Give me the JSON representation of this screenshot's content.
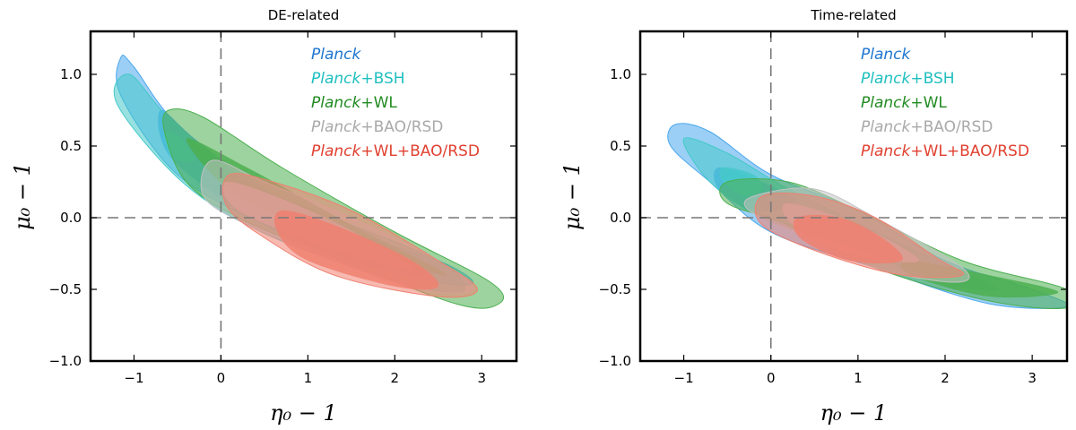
{
  "chart_data": [
    {
      "type": "contour",
      "title": "DE-related",
      "xlabel": "η₀ − 1",
      "ylabel": "μ₀ − 1",
      "xlim": [
        -1.5,
        3.4
      ],
      "ylim": [
        -1.0,
        1.3
      ],
      "xticks": [
        -1,
        0,
        1,
        2,
        3
      ],
      "yticks": [
        -1.0,
        -0.5,
        0.0,
        0.5,
        1.0
      ],
      "xtick_labels": [
        "−1",
        "0",
        "1",
        "2",
        "3"
      ],
      "ytick_labels": [
        "−1.0",
        "−0.5",
        "0.0",
        "0.5",
        "1.0"
      ],
      "reference_lines": {
        "x": 0,
        "y": 0
      },
      "legend_position": "top-right",
      "legend": [
        {
          "italic": "Planck",
          "suffix": "",
          "color": "#1f77d0"
        },
        {
          "italic": "Planck",
          "suffix": "+BSH",
          "color": "#1fbfbf"
        },
        {
          "italic": "Planck",
          "suffix": "+WL",
          "color": "#228b22"
        },
        {
          "italic": "Planck",
          "suffix": "+BAO/RSD",
          "color": "#a9a9a9"
        },
        {
          "italic": "Planck",
          "suffix": "+WL+BAO/RSD",
          "color": "#e04030"
        }
      ],
      "series": [
        {
          "name": "Planck",
          "color": "#4aa8ec",
          "outer": [
            [
              -1.15,
              1.12
            ],
            [
              -1.0,
              1.05
            ],
            [
              -0.5,
              0.65
            ],
            [
              0.5,
              0.2
            ],
            [
              1.5,
              -0.1
            ],
            [
              2.5,
              -0.3
            ],
            [
              2.9,
              -0.45
            ],
            [
              2.5,
              -0.45
            ],
            [
              1.5,
              -0.3
            ],
            [
              0.5,
              -0.05
            ],
            [
              -0.5,
              0.3
            ],
            [
              -1.15,
              0.85
            ]
          ],
          "inner": [
            [
              -0.7,
              0.75
            ],
            [
              -0.3,
              0.55
            ],
            [
              0.6,
              0.1
            ],
            [
              1.5,
              -0.15
            ],
            [
              2.4,
              -0.4
            ],
            [
              1.5,
              -0.3
            ],
            [
              0.5,
              -0.05
            ],
            [
              -0.55,
              0.4
            ]
          ]
        },
        {
          "name": "Planck+BSH",
          "color": "#45c9c9",
          "outer": [
            [
              -1.05,
              1.0
            ],
            [
              -0.6,
              0.7
            ],
            [
              0.3,
              0.25
            ],
            [
              1.5,
              -0.05
            ],
            [
              2.5,
              -0.3
            ],
            [
              2.8,
              -0.5
            ],
            [
              2.4,
              -0.5
            ],
            [
              1.3,
              -0.3
            ],
            [
              0.3,
              -0.05
            ],
            [
              -0.5,
              0.28
            ],
            [
              -1.2,
              0.8
            ]
          ],
          "inner": [
            [
              -0.65,
              0.6
            ],
            [
              -0.45,
              0.55
            ],
            [
              -0.3,
              0.4
            ],
            [
              -0.5,
              0.4
            ],
            [
              -0.6,
              0.45
            ]
          ]
        },
        {
          "name": "Planck+WL",
          "color": "#4caf50",
          "outer": [
            [
              -0.6,
              0.75
            ],
            [
              -0.2,
              0.7
            ],
            [
              0.7,
              0.35
            ],
            [
              2.0,
              -0.1
            ],
            [
              3.1,
              -0.45
            ],
            [
              3.2,
              -0.6
            ],
            [
              2.7,
              -0.6
            ],
            [
              1.2,
              -0.25
            ],
            [
              0.2,
              0.0
            ],
            [
              -0.4,
              0.25
            ],
            [
              -0.65,
              0.6
            ]
          ],
          "inner": [
            [
              -0.4,
              0.55
            ],
            [
              0.3,
              0.35
            ],
            [
              1.5,
              -0.05
            ],
            [
              2.6,
              -0.4
            ],
            [
              1.5,
              -0.2
            ],
            [
              0.2,
              0.15
            ]
          ]
        },
        {
          "name": "Planck+BAO/RSD",
          "color": "#c2c2c2",
          "outer": [
            [
              -0.1,
              0.4
            ],
            [
              0.5,
              0.25
            ],
            [
              1.5,
              0.0
            ],
            [
              2.5,
              -0.3
            ],
            [
              2.9,
              -0.5
            ],
            [
              2.3,
              -0.5
            ],
            [
              1.3,
              -0.3
            ],
            [
              0.3,
              -0.05
            ],
            [
              -0.2,
              0.15
            ]
          ],
          "inner": [
            [
              0.1,
              0.25
            ],
            [
              1.2,
              0.0
            ],
            [
              2.2,
              -0.35
            ],
            [
              1.2,
              -0.2
            ],
            [
              0.2,
              0.05
            ]
          ]
        },
        {
          "name": "Planck+WL+BAO/RSD",
          "color": "#f08070",
          "outer": [
            [
              0.1,
              0.3
            ],
            [
              0.6,
              0.25
            ],
            [
              1.5,
              0.05
            ],
            [
              2.5,
              -0.3
            ],
            [
              2.95,
              -0.5
            ],
            [
              2.5,
              -0.55
            ],
            [
              1.3,
              -0.4
            ],
            [
              0.4,
              -0.1
            ],
            [
              0.05,
              0.1
            ]
          ],
          "inner": [
            [
              0.7,
              0.05
            ],
            [
              1.3,
              -0.05
            ],
            [
              2.2,
              -0.3
            ],
            [
              2.5,
              -0.48
            ],
            [
              2.0,
              -0.48
            ],
            [
              1.0,
              -0.3
            ],
            [
              0.65,
              -0.1
            ]
          ]
        }
      ]
    },
    {
      "type": "contour",
      "title": "Time-related",
      "xlabel": "η₀ − 1",
      "ylabel": "μ₀ − 1",
      "xlim": [
        -1.5,
        3.4
      ],
      "ylim": [
        -1.0,
        1.3
      ],
      "xticks": [
        -1,
        0,
        1,
        2,
        3
      ],
      "yticks": [
        -1.0,
        -0.5,
        0.0,
        0.5,
        1.0
      ],
      "xtick_labels": [
        "−1",
        "0",
        "1",
        "2",
        "3"
      ],
      "ytick_labels": [
        "−1.0",
        "−0.5",
        "0.0",
        "0.5",
        "1.0"
      ],
      "reference_lines": {
        "x": 0,
        "y": 0
      },
      "legend_position": "top-right",
      "legend": [
        {
          "italic": "Planck",
          "suffix": "",
          "color": "#1f77d0"
        },
        {
          "italic": "Planck",
          "suffix": "+BSH",
          "color": "#1fbfbf"
        },
        {
          "italic": "Planck",
          "suffix": "+WL",
          "color": "#228b22"
        },
        {
          "italic": "Planck",
          "suffix": "+BAO/RSD",
          "color": "#a9a9a9"
        },
        {
          "italic": "Planck",
          "suffix": "+WL+BAO/RSD",
          "color": "#e04030"
        }
      ],
      "series": [
        {
          "name": "Planck",
          "color": "#4aa8ec",
          "outer": [
            [
              -1.1,
              0.65
            ],
            [
              -0.7,
              0.6
            ],
            [
              0.0,
              0.3
            ],
            [
              1.0,
              0.05
            ],
            [
              2.0,
              -0.3
            ],
            [
              3.0,
              -0.5
            ],
            [
              3.4,
              -0.62
            ],
            [
              2.5,
              -0.6
            ],
            [
              1.2,
              -0.35
            ],
            [
              0.0,
              -0.1
            ],
            [
              -0.7,
              0.25
            ],
            [
              -1.15,
              0.5
            ]
          ],
          "inner": [
            [
              -0.6,
              0.35
            ],
            [
              -0.1,
              0.25
            ],
            [
              0.3,
              0.1
            ],
            [
              -0.2,
              0.05
            ],
            [
              -0.6,
              0.2
            ]
          ]
        },
        {
          "name": "Planck+BSH",
          "color": "#45c9c9",
          "outer": [
            [
              -1.0,
              0.55
            ],
            [
              -0.5,
              0.45
            ],
            [
              0.2,
              0.2
            ],
            [
              1.2,
              -0.1
            ],
            [
              2.2,
              -0.38
            ],
            [
              2.6,
              -0.5
            ],
            [
              2.0,
              -0.45
            ],
            [
              0.9,
              -0.2
            ],
            [
              -0.1,
              0.0
            ],
            [
              -0.7,
              0.25
            ]
          ],
          "inner": [
            [
              -0.55,
              0.35
            ],
            [
              -0.2,
              0.3
            ],
            [
              -0.1,
              0.2
            ],
            [
              -0.3,
              0.15
            ],
            [
              -0.55,
              0.25
            ]
          ]
        },
        {
          "name": "Planck+WL",
          "color": "#4caf50",
          "outer": [
            [
              -0.5,
              0.25
            ],
            [
              0.2,
              0.25
            ],
            [
              1.0,
              0.05
            ],
            [
              2.2,
              -0.3
            ],
            [
              3.4,
              -0.5
            ],
            [
              3.4,
              -0.63
            ],
            [
              2.5,
              -0.58
            ],
            [
              1.2,
              -0.35
            ],
            [
              0.2,
              -0.05
            ],
            [
              -0.5,
              0.1
            ]
          ],
          "inner": [
            [
              1.6,
              -0.3
            ],
            [
              2.5,
              -0.4
            ],
            [
              3.3,
              -0.52
            ],
            [
              2.5,
              -0.55
            ],
            [
              1.6,
              -0.4
            ]
          ]
        },
        {
          "name": "Planck+BAO/RSD",
          "color": "#c2c2c2",
          "outer": [
            [
              -0.2,
              0.15
            ],
            [
              0.5,
              0.2
            ],
            [
              1.2,
              0.0
            ],
            [
              2.2,
              -0.35
            ],
            [
              2.1,
              -0.45
            ],
            [
              1.2,
              -0.35
            ],
            [
              0.3,
              -0.1
            ],
            [
              -0.25,
              0.05
            ]
          ],
          "inner": [
            [
              0.2,
              0.1
            ],
            [
              1.0,
              -0.05
            ],
            [
              1.7,
              -0.3
            ],
            [
              0.9,
              -0.25
            ],
            [
              0.25,
              -0.05
            ]
          ]
        },
        {
          "name": "Planck+WL+BAO/RSD",
          "color": "#f08070",
          "outer": [
            [
              -0.1,
              0.15
            ],
            [
              0.5,
              0.15
            ],
            [
              1.2,
              0.0
            ],
            [
              1.9,
              -0.28
            ],
            [
              2.2,
              -0.4
            ],
            [
              1.5,
              -0.4
            ],
            [
              0.6,
              -0.25
            ],
            [
              -0.1,
              -0.05
            ]
          ],
          "inner": [
            [
              0.3,
              0.0
            ],
            [
              0.8,
              0.0
            ],
            [
              1.3,
              -0.15
            ],
            [
              1.5,
              -0.3
            ],
            [
              0.9,
              -0.3
            ],
            [
              0.35,
              -0.15
            ]
          ]
        }
      ]
    }
  ]
}
